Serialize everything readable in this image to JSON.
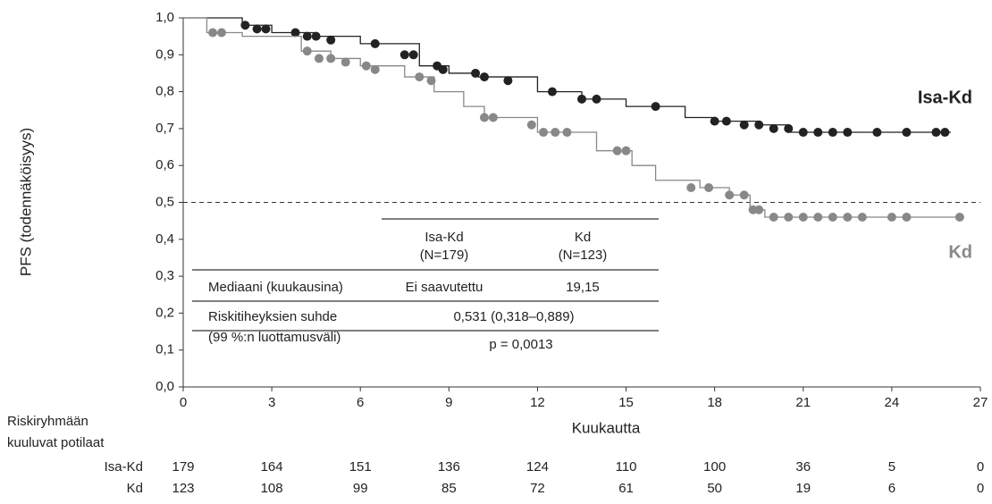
{
  "chart_data": {
    "type": "step",
    "y_label": "PFS (todennäköisyys)",
    "x_label": "Kuukautta",
    "xlim": [
      0,
      27
    ],
    "xticks": [
      0,
      3,
      6,
      9,
      12,
      15,
      18,
      21,
      24,
      27
    ],
    "ylim": [
      0,
      1
    ],
    "yticks": [
      {
        "value": 0,
        "label": "0,0"
      },
      {
        "value": 0.1,
        "label": "0,1"
      },
      {
        "value": 0.2,
        "label": "0,2"
      },
      {
        "value": 0.3,
        "label": "0,3"
      },
      {
        "value": 0.4,
        "label": "0,4"
      },
      {
        "value": 0.5,
        "label": "0,5"
      },
      {
        "value": 0.6,
        "label": "0,6"
      },
      {
        "value": 0.7,
        "label": "0,7"
      },
      {
        "value": 0.8,
        "label": "0,8"
      },
      {
        "value": 0.9,
        "label": "0,9"
      },
      {
        "value": 1,
        "label": "1,0"
      }
    ],
    "reference_line": 0.5,
    "series": [
      {
        "name": "Isa-Kd",
        "color": "#222222",
        "x": [
          0,
          2,
          3,
          4.5,
          6,
          8,
          9,
          10,
          12,
          13.5,
          15,
          17,
          18,
          19.5,
          20.5,
          26
        ],
        "values": [
          1,
          0.98,
          0.96,
          0.95,
          0.93,
          0.87,
          0.85,
          0.84,
          0.8,
          0.78,
          0.76,
          0.73,
          0.72,
          0.71,
          0.69,
          0.69
        ],
        "censor_x": [
          2.1,
          2.5,
          2.8,
          3.8,
          4.2,
          4.5,
          5,
          6.5,
          7.5,
          7.8,
          8.6,
          8.8,
          9.9,
          10.2,
          11,
          12.5,
          13.5,
          14,
          16,
          18,
          18.4,
          19,
          19.5,
          20,
          20.5,
          21,
          21.5,
          22,
          22.5,
          23.5,
          24.5,
          25.5,
          25.8
        ],
        "censor_values": [
          0.98,
          0.97,
          0.97,
          0.96,
          0.95,
          0.95,
          0.94,
          0.93,
          0.9,
          0.9,
          0.87,
          0.86,
          0.85,
          0.84,
          0.83,
          0.8,
          0.78,
          0.78,
          0.76,
          0.72,
          0.72,
          0.71,
          0.71,
          0.7,
          0.7,
          0.69,
          0.69,
          0.69,
          0.69,
          0.69,
          0.69,
          0.69,
          0.69
        ]
      },
      {
        "name": "Kd",
        "color": "#888888",
        "x": [
          0,
          0.8,
          2,
          4,
          5,
          6,
          7.5,
          8.5,
          9.5,
          10.2,
          12,
          14,
          15.2,
          16,
          17.5,
          18.5,
          19.2,
          19.7,
          26.3
        ],
        "values": [
          1,
          0.96,
          0.95,
          0.91,
          0.89,
          0.87,
          0.84,
          0.8,
          0.76,
          0.73,
          0.69,
          0.64,
          0.6,
          0.56,
          0.54,
          0.52,
          0.48,
          0.46,
          0.46
        ],
        "censor_x": [
          1,
          1.3,
          4.2,
          4.6,
          5,
          5.5,
          6.2,
          6.5,
          8,
          8.4,
          10.2,
          10.5,
          11.8,
          12.2,
          12.6,
          13,
          14.7,
          15,
          17.2,
          17.8,
          18.5,
          19,
          19.3,
          19.5,
          20,
          20.5,
          21,
          21.5,
          22,
          22.5,
          23,
          24,
          24.5,
          26.3
        ],
        "censor_values": [
          0.96,
          0.96,
          0.91,
          0.89,
          0.89,
          0.88,
          0.87,
          0.86,
          0.84,
          0.83,
          0.73,
          0.73,
          0.71,
          0.69,
          0.69,
          0.69,
          0.64,
          0.64,
          0.54,
          0.54,
          0.52,
          0.52,
          0.48,
          0.48,
          0.46,
          0.46,
          0.46,
          0.46,
          0.46,
          0.46,
          0.46,
          0.46,
          0.46,
          0.46
        ]
      }
    ],
    "table": {
      "headers": [
        [
          "Isa-Kd",
          "(N=179)"
        ],
        [
          "Kd",
          "(N=123)"
        ]
      ],
      "median": {
        "label": "Mediaani (kuukausina)",
        "values": [
          "Ei saavutettu",
          "19,15"
        ]
      },
      "hazard": {
        "label": [
          "Riskitiheyksien suhde",
          "(99 %:n luottamusväli)"
        ],
        "value": "0,531 (0,318–0,889)"
      },
      "p": "p = 0,0013"
    },
    "risk_table": {
      "title": [
        "Riskiryhmään",
        "kuuluvat potilaat"
      ],
      "rows": [
        {
          "name": "Isa-Kd",
          "values": [
            "179",
            "164",
            "151",
            "136",
            "124",
            "110",
            "100",
            "36",
            "5",
            "0"
          ]
        },
        {
          "name": "Kd",
          "values": [
            "123",
            "108",
            "99",
            "85",
            "72",
            "61",
            "50",
            "19",
            "6",
            "0"
          ]
        }
      ]
    }
  }
}
